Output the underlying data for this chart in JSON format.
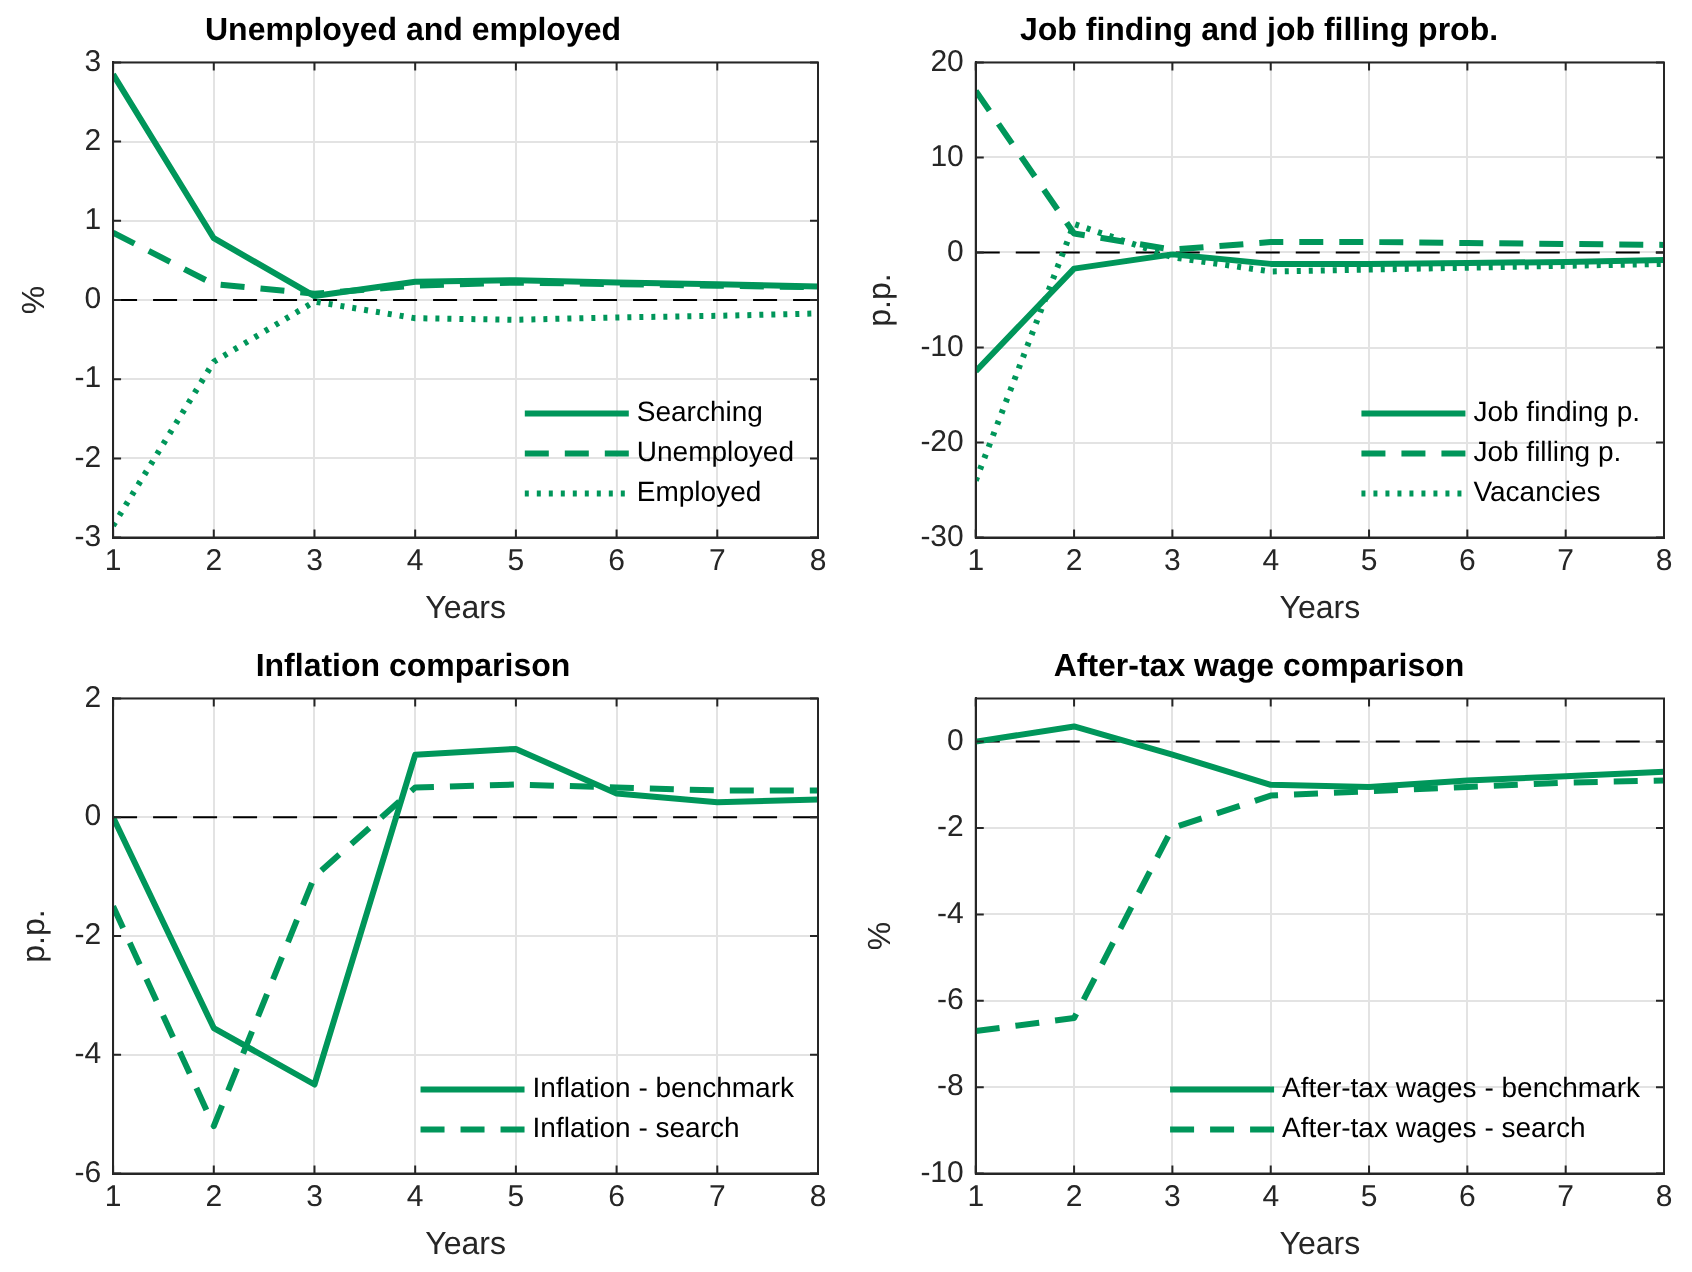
{
  "chart_data": [
    {
      "type": "line",
      "title": "Unemployed and employed",
      "xlabel": "Years",
      "ylabel": "%",
      "x": [
        1,
        2,
        3,
        4,
        5,
        6,
        7,
        8
      ],
      "xlim": [
        1,
        8
      ],
      "xticks": [
        1,
        2,
        3,
        4,
        5,
        6,
        7,
        8
      ],
      "ylim": [
        -3,
        3
      ],
      "yticks": [
        -3,
        -2,
        -1,
        0,
        1,
        2,
        3
      ],
      "grid": true,
      "legend": "bottom right",
      "marker": "none",
      "ref_lines": [
        {
          "axis": "y",
          "value": 0,
          "color": "#000000",
          "line_style": "dashed"
        }
      ],
      "series": [
        {
          "name": "Searching",
          "color": "#00965a",
          "line_style": "solid",
          "values": [
            2.85,
            0.78,
            0.05,
            0.23,
            0.25,
            0.22,
            0.2,
            0.17
          ]
        },
        {
          "name": "Unemployed",
          "color": "#00965a",
          "line_style": "dashed",
          "values": [
            0.85,
            0.2,
            0.08,
            0.18,
            0.22,
            0.2,
            0.18,
            0.16
          ]
        },
        {
          "name": "Employed",
          "color": "#00965a",
          "line_style": "dotted",
          "values": [
            -2.85,
            -0.78,
            -0.02,
            -0.23,
            -0.25,
            -0.22,
            -0.2,
            -0.17
          ]
        }
      ]
    },
    {
      "type": "line",
      "title": "Job finding and job filling prob.",
      "xlabel": "Years",
      "ylabel": "p.p.",
      "x": [
        1,
        2,
        3,
        4,
        5,
        6,
        7,
        8
      ],
      "xlim": [
        1,
        8
      ],
      "xticks": [
        1,
        2,
        3,
        4,
        5,
        6,
        7,
        8
      ],
      "ylim": [
        -30,
        20
      ],
      "yticks": [
        -30,
        -20,
        -10,
        0,
        10,
        20
      ],
      "grid": true,
      "legend": "bottom right",
      "marker": "none",
      "ref_lines": [
        {
          "axis": "y",
          "value": 0,
          "color": "#000000",
          "line_style": "dashed"
        }
      ],
      "series": [
        {
          "name": "Job finding p.",
          "color": "#00965a",
          "line_style": "solid",
          "values": [
            -12.5,
            -1.7,
            -0.2,
            -1.2,
            -1.2,
            -1.1,
            -1.0,
            -0.8
          ]
        },
        {
          "name": "Job filling p.",
          "color": "#00965a",
          "line_style": "dashed",
          "values": [
            17,
            2,
            0.3,
            1.1,
            1.1,
            1.0,
            0.9,
            0.8
          ]
        },
        {
          "name": "Vacancies",
          "color": "#00965a",
          "line_style": "dotted",
          "values": [
            -24,
            3,
            -0.5,
            -2,
            -1.8,
            -1.6,
            -1.4,
            -1.2
          ]
        }
      ]
    },
    {
      "type": "line",
      "title": "Inflation comparison",
      "xlabel": "Years",
      "ylabel": "p.p.",
      "x": [
        1,
        2,
        3,
        4,
        5,
        6,
        7,
        8
      ],
      "xlim": [
        1,
        8
      ],
      "xticks": [
        1,
        2,
        3,
        4,
        5,
        6,
        7,
        8
      ],
      "ylim": [
        -6,
        2
      ],
      "yticks": [
        -6,
        -4,
        -2,
        0,
        2
      ],
      "grid": true,
      "legend": "bottom right",
      "marker": "none",
      "ref_lines": [
        {
          "axis": "y",
          "value": 0,
          "color": "#000000",
          "line_style": "dashed"
        }
      ],
      "series": [
        {
          "name": "Inflation - benchmark",
          "color": "#00965a",
          "line_style": "solid",
          "values": [
            0,
            -3.55,
            -4.5,
            1.05,
            1.15,
            0.4,
            0.25,
            0.3
          ]
        },
        {
          "name": "Inflation - search",
          "color": "#00965a",
          "line_style": "dashed",
          "values": [
            -1.5,
            -5.2,
            -1.0,
            0.5,
            0.55,
            0.5,
            0.45,
            0.45
          ]
        }
      ]
    },
    {
      "type": "line",
      "title": "After-tax wage comparison",
      "xlabel": "Years",
      "ylabel": "%",
      "x": [
        1,
        2,
        3,
        4,
        5,
        6,
        7,
        8
      ],
      "xlim": [
        1,
        8
      ],
      "xticks": [
        1,
        2,
        3,
        4,
        5,
        6,
        7,
        8
      ],
      "ylim": [
        -10,
        1
      ],
      "yticks": [
        -10,
        -8,
        -6,
        -4,
        -2,
        0
      ],
      "grid": true,
      "legend": "bottom right",
      "marker": "none",
      "ref_lines": [
        {
          "axis": "y",
          "value": 0,
          "color": "#000000",
          "line_style": "dashed"
        }
      ],
      "series": [
        {
          "name": "After-tax wages - benchmark",
          "color": "#00965a",
          "line_style": "solid",
          "values": [
            0,
            0.35,
            -0.3,
            -1.0,
            -1.05,
            -0.9,
            -0.8,
            -0.7
          ]
        },
        {
          "name": "After-tax wages - search",
          "color": "#00965a",
          "line_style": "dashed",
          "values": [
            -6.7,
            -6.4,
            -2.0,
            -1.25,
            -1.15,
            -1.05,
            -0.95,
            -0.9
          ]
        }
      ]
    }
  ]
}
